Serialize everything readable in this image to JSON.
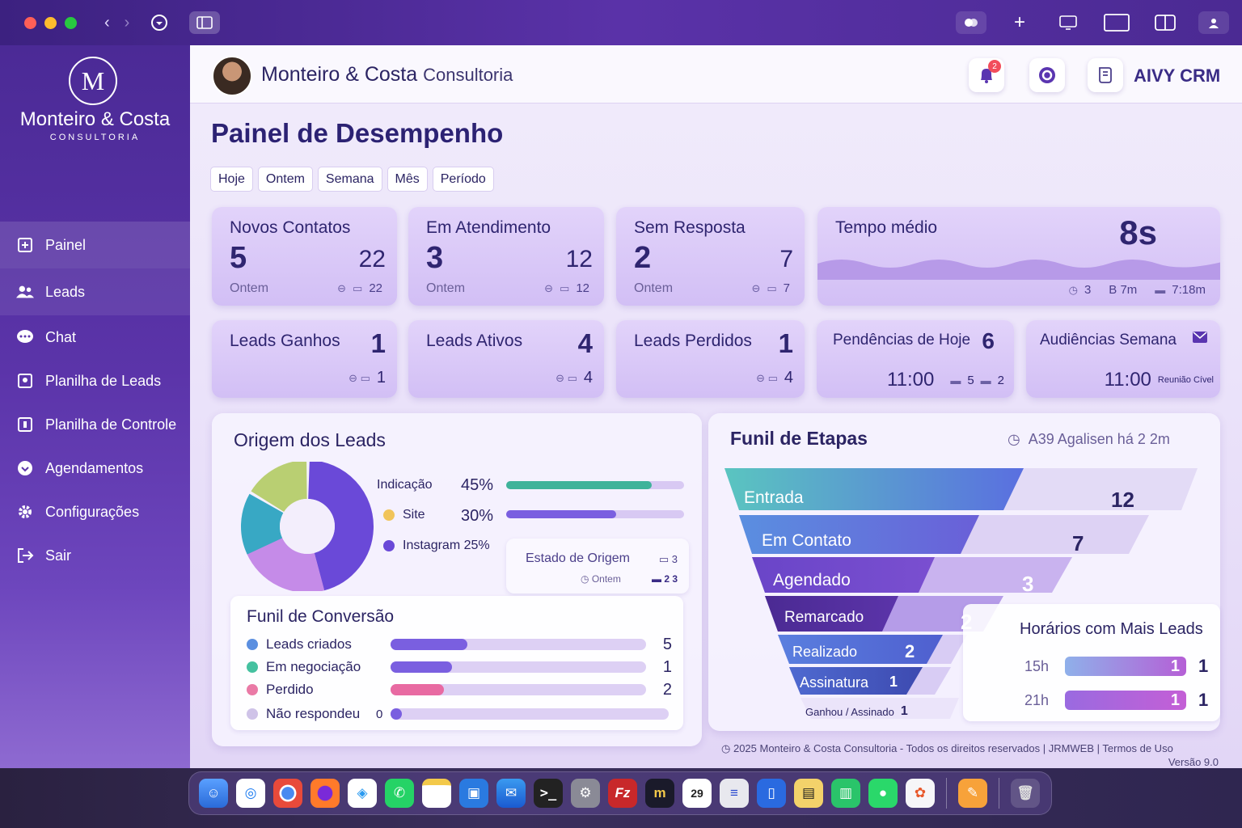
{
  "window": {
    "nav_back": "‹",
    "nav_forward": "›"
  },
  "sidebar": {
    "logo_letter": "M",
    "brand_name": "Monteiro & Costa",
    "brand_sub": "CONSULTORIA",
    "items": [
      {
        "label": "Painel",
        "icon": "dashboard-icon"
      },
      {
        "label": "Leads",
        "icon": "users-icon"
      },
      {
        "label": "Chat",
        "icon": "chat-icon"
      },
      {
        "label": "Planilha de Leads",
        "icon": "sheet-icon"
      },
      {
        "label": "Planilha de Controle",
        "icon": "control-icon"
      },
      {
        "label": "Agendamentos",
        "icon": "calendar-icon"
      },
      {
        "label": "Configurações",
        "icon": "gear-icon"
      },
      {
        "label": "Sair",
        "icon": "logout-icon"
      }
    ]
  },
  "header": {
    "company_main": "Monteiro & Costa",
    "company_light": "Consultoria",
    "notification_count": "2",
    "crm_label": "AIVY CRM"
  },
  "page": {
    "title": "Painel de Desempenho",
    "filters": [
      "Hoje",
      "Ontem",
      "Semana",
      "Mês",
      "Período"
    ]
  },
  "cards_top": [
    {
      "title": "Novos Contatos",
      "big": "5",
      "right": "22",
      "sub": "Ontem",
      "meta": "22"
    },
    {
      "title": "Em Atendimento",
      "big": "3",
      "right": "12",
      "sub": "Ontem",
      "meta": "12"
    },
    {
      "title": "Sem Resposta",
      "big": "2",
      "right": "7",
      "sub": "Ontem",
      "meta": "7"
    }
  ],
  "tempo_card": {
    "title": "Tempo médio",
    "value": "8s",
    "meta1": "3",
    "meta2": "B 7m",
    "meta3": "7:18m"
  },
  "cards_bottom": [
    {
      "title": "Leads Ganhos",
      "num": "1",
      "meta": "1"
    },
    {
      "title": "Leads Ativos",
      "num": "4",
      "meta": "4"
    },
    {
      "title": "Leads Perdidos",
      "num": "1",
      "meta": "4"
    }
  ],
  "pendencias": {
    "title": "Pendências de Hoje",
    "num": "6",
    "time": "11:00",
    "m1": "5",
    "m2": "2"
  },
  "audiencias": {
    "title": "Audiências Semana",
    "time": "11:00",
    "note": "Reunião Cível"
  },
  "origem": {
    "title": "Origem dos Leads",
    "items": [
      {
        "label": "Indicação",
        "pct": "45%",
        "value": 0.82,
        "color": "#3fb39a"
      },
      {
        "label": "Site",
        "pct": "30%",
        "value": 0.62,
        "color": "#f1c45a"
      },
      {
        "label": "Instagram 25%",
        "pct": "",
        "value": 0,
        "color": "#6a49d8"
      }
    ],
    "estado_label": "Estado de Origem",
    "estado_meta1": "3",
    "estado_sub": "Ontem",
    "estado_meta2": "2  3"
  },
  "conversao": {
    "title": "Funil de Conversão",
    "rows": [
      {
        "label": "Leads criados",
        "value": "5",
        "fill": 0.3,
        "color": "#5b8fe0",
        "bar": "#7a5fe0"
      },
      {
        "label": "Em negociação",
        "value": "1",
        "fill": 0.24,
        "color": "#45c1a0",
        "bar": "#7a5fe0"
      },
      {
        "label": "Perdido",
        "value": "2",
        "fill": 0.21,
        "color": "#ea7aa6",
        "bar": "#e86aa2"
      },
      {
        "label": "Não respondeu",
        "value": "0",
        "fill": 0.04,
        "color": "#cfc3e8",
        "bar": "#7a5fe0"
      }
    ]
  },
  "funil": {
    "title": "Funil de Etapas",
    "updated": "A39 Agalisen há 2 2m",
    "steps": [
      {
        "label": "Entrada",
        "value": "12"
      },
      {
        "label": "Em Contato",
        "value": "7"
      },
      {
        "label": "Agendado",
        "value": "3"
      },
      {
        "label": "Remarcado",
        "value": "2"
      },
      {
        "label": "Realizado",
        "value": "2"
      },
      {
        "label": "Assinatura",
        "value": "1"
      },
      {
        "label": "Ganhou / Assinado",
        "value": "1"
      }
    ]
  },
  "horarios": {
    "title": "Horários com Mais Leads",
    "rows": [
      {
        "label": "15h",
        "inside": "1",
        "value": "1"
      },
      {
        "label": "21h",
        "inside": "1",
        "value": "1"
      }
    ]
  },
  "footer": {
    "copyright": "2025 Monteiro & Costa Consultoria - Todos os direitos reservados | JRMWEB | Termos de Uso",
    "version": "Versão 9.0"
  },
  "dock": {
    "calendar_day": "29"
  }
}
